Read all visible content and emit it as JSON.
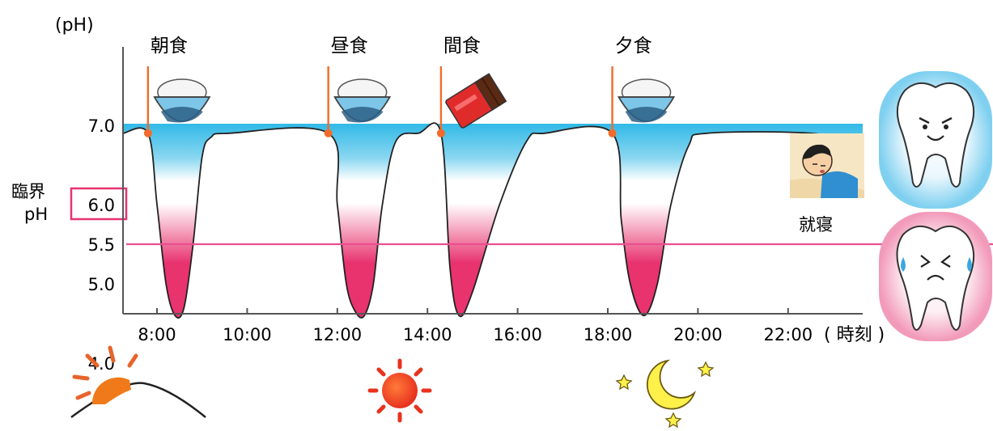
{
  "chart_data": {
    "type": "area",
    "ylabel": "(pH)",
    "xlabel": "( 時刻 )",
    "ylim": [
      3.6,
      8.4
    ],
    "y_ticks": [
      "7.0",
      "6.0",
      "5.5",
      "5.0",
      "4.0"
    ],
    "x_ticks": [
      "8:00",
      "10:00",
      "12:00",
      "14:00",
      "16:00",
      "18:00",
      "20:00",
      "22:00"
    ],
    "critical": {
      "label_line1": "臨界",
      "label_line2": "pH",
      "value": 5.5
    },
    "series": [
      {
        "points": [
          [
            7.2,
            6.9
          ],
          [
            7.8,
            6.9
          ],
          [
            8.0,
            6.0
          ],
          [
            8.2,
            5.0
          ],
          [
            8.4,
            4.6
          ],
          [
            8.6,
            4.7
          ],
          [
            8.8,
            5.5
          ],
          [
            9.0,
            6.6
          ],
          [
            9.2,
            6.85
          ],
          [
            9.6,
            6.9
          ],
          [
            11.8,
            6.9
          ],
          [
            12.0,
            6.0
          ],
          [
            12.2,
            5.0
          ],
          [
            12.4,
            4.65
          ],
          [
            12.6,
            4.6
          ],
          [
            12.8,
            5.0
          ],
          [
            13.0,
            6.0
          ],
          [
            13.3,
            6.8
          ],
          [
            13.8,
            6.9
          ],
          [
            14.3,
            6.9
          ],
          [
            14.5,
            5.2
          ],
          [
            14.7,
            4.6
          ],
          [
            15.0,
            4.9
          ],
          [
            15.6,
            6.0
          ],
          [
            16.2,
            6.8
          ],
          [
            16.6,
            6.9
          ],
          [
            18.1,
            6.9
          ],
          [
            18.3,
            5.8
          ],
          [
            18.5,
            5.0
          ],
          [
            18.8,
            4.6
          ],
          [
            19.1,
            5.0
          ],
          [
            19.4,
            6.0
          ],
          [
            19.8,
            6.75
          ],
          [
            20.2,
            6.9
          ],
          [
            22.5,
            6.9
          ],
          [
            24.0,
            6.75
          ]
        ]
      }
    ],
    "meals": [
      {
        "label": "朝食",
        "time": 7.8,
        "icon": "rice-bowl"
      },
      {
        "label": "昼食",
        "time": 11.8,
        "icon": "rice-bowl"
      },
      {
        "label": "間食",
        "time": 14.3,
        "icon": "chocolate"
      },
      {
        "label": "夕食",
        "time": 18.1,
        "icon": "rice-bowl"
      }
    ],
    "sleep": {
      "label": "就寝",
      "icon": "sleeping-person"
    },
    "colors": {
      "safe_fill": "#29b8e8",
      "danger_fill": "#e8336f",
      "critical_line": "#ea4f8f",
      "meal_marker": "#f26b2a",
      "curve": "#222222"
    }
  },
  "icons": {
    "day_scene": [
      "sunrise-icon",
      "sun-icon",
      "moon-stars-icon"
    ],
    "teeth": [
      "happy-tooth-icon",
      "crying-tooth-icon"
    ]
  }
}
